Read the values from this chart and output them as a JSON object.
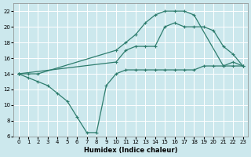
{
  "xlabel": "Humidex (Indice chaleur)",
  "background_color": "#cce8ed",
  "grid_color": "#ffffff",
  "line_color": "#2e7d6e",
  "xlim": [
    -0.5,
    23.5
  ],
  "ylim": [
    6,
    23
  ],
  "yticks": [
    6,
    8,
    10,
    12,
    14,
    16,
    18,
    20,
    22
  ],
  "xticks": [
    0,
    1,
    2,
    3,
    4,
    5,
    6,
    7,
    8,
    9,
    10,
    11,
    12,
    13,
    14,
    15,
    16,
    17,
    18,
    19,
    20,
    21,
    22,
    23
  ],
  "line1_x": [
    0,
    1,
    2,
    3,
    4,
    5,
    6,
    7,
    8,
    9,
    10,
    11,
    12,
    13,
    14,
    15,
    16,
    17,
    18,
    19,
    20,
    21,
    22,
    23
  ],
  "line1_y": [
    14,
    13.5,
    13,
    12.5,
    11.5,
    10.5,
    8.5,
    6.5,
    6.5,
    12.5,
    14,
    14.5,
    14.5,
    14.5,
    14.5,
    14.5,
    14.5,
    14.5,
    14.5,
    15,
    15,
    15,
    15,
    15
  ],
  "line2_x": [
    0,
    1,
    2,
    10,
    11,
    12,
    13,
    14,
    15,
    16,
    17,
    18,
    21,
    22,
    23
  ],
  "line2_y": [
    14,
    14,
    14,
    17,
    18,
    19,
    20.5,
    21.5,
    22,
    22,
    22,
    21.5,
    15,
    15.5,
    15
  ],
  "line3_x": [
    0,
    10,
    11,
    12,
    13,
    14,
    15,
    16,
    17,
    18,
    19,
    20,
    21,
    22,
    23
  ],
  "line3_y": [
    14,
    15.5,
    17,
    17.5,
    17.5,
    17.5,
    20,
    20.5,
    20,
    20,
    20,
    19.5,
    17.5,
    16.5,
    15
  ]
}
